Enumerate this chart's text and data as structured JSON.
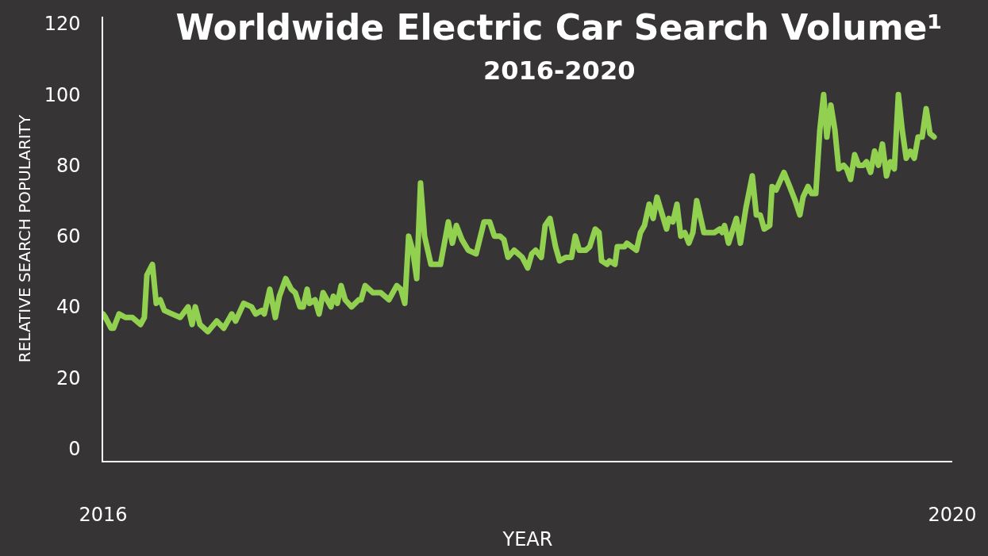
{
  "chart_data": {
    "type": "line",
    "title": "Worldwide Electric Car Search Volume¹",
    "subtitle": "2016-2020",
    "xlabel": "YEAR",
    "ylabel": "RELATIVE SEARCH POPULARITY",
    "xlim": [
      2016,
      2020
    ],
    "xticks": [
      2016,
      2020
    ],
    "ylim": [
      -3.5,
      122
    ],
    "yticks": [
      0,
      20,
      40,
      60,
      80,
      100,
      120
    ],
    "grid": false,
    "marker": "none",
    "line_style": "solid",
    "x": [
      2016.0,
      2016.011,
      2016.037,
      2016.049,
      2016.075,
      2016.105,
      2016.138,
      2016.176,
      2016.194,
      2016.206,
      2016.232,
      2016.25,
      2016.269,
      2016.288,
      2016.325,
      2016.363,
      2016.4,
      2016.419,
      2016.434,
      2016.456,
      2016.493,
      2016.535,
      2016.568,
      2016.606,
      2016.624,
      2016.662,
      2016.699,
      2016.718,
      2016.748,
      2016.759,
      2016.785,
      2016.811,
      2016.83,
      2016.86,
      2016.886,
      2016.905,
      2016.927,
      2016.942,
      2016.961,
      2016.972,
      2016.998,
      2017.017,
      2017.036,
      2017.073,
      2017.084,
      2017.103,
      2017.121,
      2017.14,
      2017.17,
      2017.204,
      2017.215,
      2017.234,
      2017.271,
      2017.308,
      2017.346,
      2017.383,
      2017.402,
      2017.421,
      2017.439,
      2017.458,
      2017.477,
      2017.495,
      2017.514,
      2017.544,
      2017.589,
      2017.626,
      2017.645,
      2017.664,
      2017.69,
      2017.72,
      2017.757,
      2017.794,
      2017.821,
      2017.843,
      2017.869,
      2017.888,
      2017.907,
      2017.936,
      2017.974,
      2018.0,
      2018.019,
      2018.037,
      2018.064,
      2018.082,
      2018.105,
      2018.131,
      2018.15,
      2018.179,
      2018.206,
      2018.224,
      2018.243,
      2018.273,
      2018.292,
      2018.318,
      2018.336,
      2018.348,
      2018.374,
      2018.385,
      2018.411,
      2018.422,
      2018.456,
      2018.467,
      2018.512,
      2018.531,
      2018.55,
      2018.572,
      2018.591,
      2018.609,
      2018.654,
      2018.665,
      2018.684,
      2018.703,
      2018.721,
      2018.74,
      2018.759,
      2018.778,
      2018.796,
      2018.83,
      2018.879,
      2018.905,
      2018.916,
      2018.927,
      2018.946,
      2018.983,
      2019.002,
      2019.028,
      2019.058,
      2019.077,
      2019.095,
      2019.114,
      2019.14,
      2019.151,
      2019.17,
      2019.207,
      2019.234,
      2019.26,
      2019.282,
      2019.297,
      2019.32,
      2019.338,
      2019.357,
      2019.376,
      2019.394,
      2019.409,
      2019.428,
      2019.447,
      2019.465,
      2019.488,
      2019.503,
      2019.521,
      2019.54,
      2019.559,
      2019.581,
      2019.596,
      2019.615,
      2019.634,
      2019.652,
      2019.671,
      2019.69,
      2019.708,
      2019.727,
      2019.746,
      2019.764,
      2019.783,
      2019.802,
      2019.821,
      2019.839,
      2019.858,
      2019.877,
      2019.895,
      2019.914
    ],
    "series": [
      {
        "color": "#92d050",
        "values": [
          38,
          37,
          34,
          34,
          38,
          37,
          37,
          35,
          37,
          49,
          52,
          41,
          42,
          39,
          38,
          37,
          40,
          35,
          40,
          35,
          33,
          36,
          34,
          38,
          36,
          41,
          40,
          38,
          39,
          38,
          45,
          37,
          43,
          48,
          45,
          44,
          40,
          40,
          45,
          41,
          42,
          38,
          44,
          40,
          43,
          41,
          46,
          42,
          40,
          42,
          42,
          46,
          44,
          44,
          42,
          46,
          45,
          41,
          60,
          56,
          48,
          75,
          60,
          52,
          52,
          64,
          58,
          63,
          59,
          56,
          55,
          64,
          64,
          60,
          60,
          59,
          54,
          56,
          54,
          51,
          55,
          56,
          54,
          63,
          65,
          57,
          53,
          54,
          54,
          60,
          56,
          56,
          57,
          62,
          61,
          53,
          52,
          53,
          52,
          57,
          57,
          58,
          56,
          61,
          63,
          69,
          65,
          71,
          62,
          65,
          64,
          69,
          60,
          61,
          58,
          61,
          70,
          61,
          61,
          62,
          61,
          63,
          58,
          65,
          58,
          68,
          77,
          66,
          66,
          62,
          63,
          74,
          73,
          78,
          74,
          70,
          66,
          71,
          74,
          72,
          72,
          90,
          100,
          88,
          97,
          90,
          79,
          80,
          79,
          76,
          83,
          80,
          80,
          81,
          78,
          84,
          80,
          86,
          77,
          81,
          79,
          100,
          90,
          82,
          84,
          82,
          88,
          88,
          96,
          89,
          88
        ]
      }
    ]
  }
}
